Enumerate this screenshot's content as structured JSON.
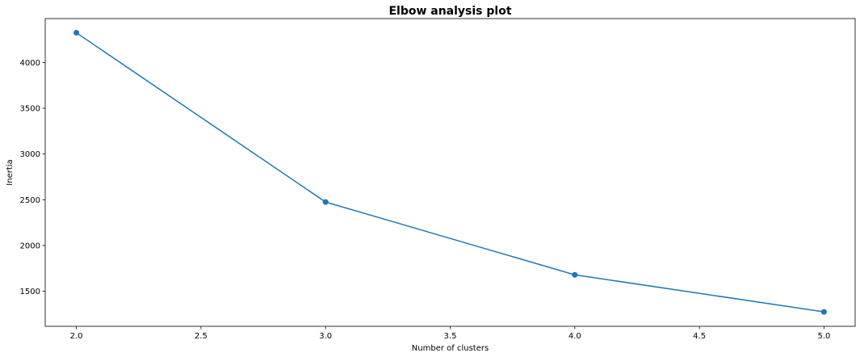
{
  "chart_data": {
    "type": "line",
    "title": "Elbow analysis plot",
    "xlabel": "Number of clusters",
    "ylabel": "Inertia",
    "x": [
      2,
      3,
      4,
      5
    ],
    "series": [
      {
        "values": [
          4325,
          2475,
          1680,
          1275
        ],
        "color": "#1f77b4",
        "marker": "circle"
      }
    ],
    "xlim": [
      1.875,
      5.125
    ],
    "ylim": [
      1117,
      4480
    ],
    "xticks": [
      2.0,
      2.5,
      3.0,
      3.5,
      4.0,
      4.5,
      5.0
    ],
    "xtick_labels": [
      "2.0",
      "2.5",
      "3.0",
      "3.5",
      "4.0",
      "4.5",
      "5.0"
    ],
    "yticks": [
      1500,
      2000,
      2500,
      3000,
      3500,
      4000
    ],
    "ytick_labels": [
      "1500",
      "2000",
      "2500",
      "3000",
      "3500",
      "4000"
    ],
    "grid": false,
    "legend": "none"
  }
}
